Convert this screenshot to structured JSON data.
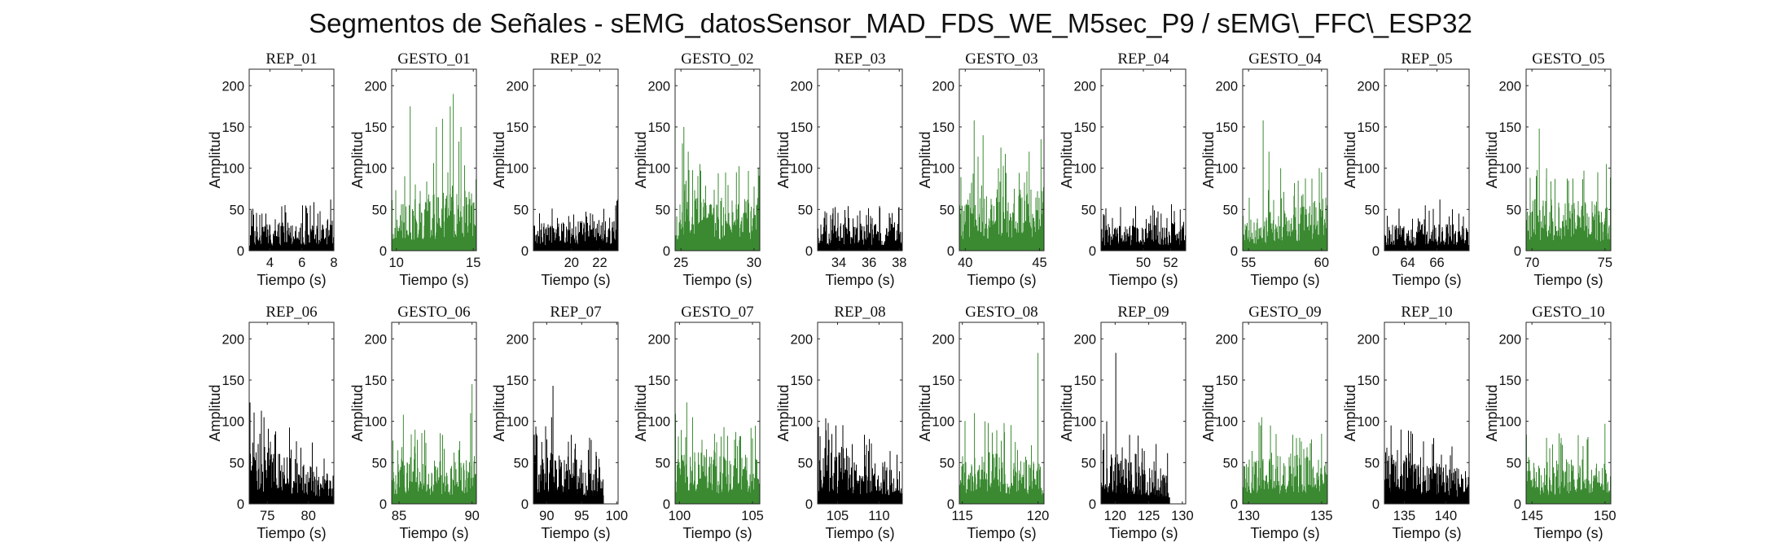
{
  "figure": {
    "title": "Segmentos de Señales - sEMG_datosSensor_MAD_FDS_WE_M5sec_P9 / sEMG\\_FFC\\_ESP32"
  },
  "colors": {
    "rep": "#000000",
    "gesto": "#3b8a32"
  },
  "chart_data": [
    {
      "type": "area",
      "title": "REP_01",
      "kind": "rep",
      "xlim": [
        2.7,
        8
      ],
      "ylim": [
        0,
        220
      ],
      "xticks": [
        4,
        6,
        8
      ],
      "yticks": [
        0,
        50,
        100,
        150,
        200
      ],
      "xlabel": "Tiempo (s)",
      "ylabel": "Amplitud",
      "data_start": 2.7,
      "data_end": 8,
      "base": [
        24,
        30
      ],
      "spikes": [
        [
          3.5,
          45
        ],
        [
          6.3,
          52
        ],
        [
          7.0,
          45
        ],
        [
          7.8,
          62
        ]
      ]
    },
    {
      "type": "area",
      "title": "GESTO_01",
      "kind": "gesto",
      "xlim": [
        9.7,
        15.2
      ],
      "ylim": [
        0,
        220
      ],
      "xticks": [
        10,
        15
      ],
      "yticks": [
        0,
        50,
        100,
        150,
        200
      ],
      "xlabel": "Tiempo (s)",
      "ylabel": "Amplitud",
      "data_start": 9.7,
      "data_end": 15.2,
      "base": [
        40,
        70
      ],
      "spikes": [
        [
          10.9,
          175
        ],
        [
          12.6,
          150
        ],
        [
          13.0,
          160
        ],
        [
          13.5,
          175
        ],
        [
          13.7,
          190
        ],
        [
          14.2,
          150
        ]
      ]
    },
    {
      "type": "area",
      "title": "REP_02",
      "kind": "rep",
      "xlim": [
        17.3,
        23.3
      ],
      "ylim": [
        0,
        220
      ],
      "xticks": [
        20,
        22
      ],
      "yticks": [
        0,
        50,
        100,
        150,
        200
      ],
      "xlabel": "Tiempo (s)",
      "ylabel": "Amplitud",
      "data_start": 17.3,
      "data_end": 23.3,
      "base": [
        25,
        30
      ],
      "spikes": [
        [
          19.8,
          42
        ],
        [
          21.5,
          44
        ],
        [
          22.7,
          40
        ]
      ]
    },
    {
      "type": "area",
      "title": "GESTO_02",
      "kind": "gesto",
      "xlim": [
        24.6,
        30.4
      ],
      "ylim": [
        0,
        220
      ],
      "xticks": [
        25,
        30
      ],
      "yticks": [
        0,
        50,
        100,
        150,
        200
      ],
      "xlabel": "Tiempo (s)",
      "ylabel": "Amplitud",
      "data_start": 24.6,
      "data_end": 30.4,
      "base": [
        50,
        50
      ],
      "spikes": [
        [
          25.1,
          130
        ],
        [
          25.2,
          150
        ],
        [
          25.5,
          120
        ],
        [
          26.3,
          105
        ],
        [
          28.8,
          95
        ],
        [
          30.3,
          100
        ]
      ]
    },
    {
      "type": "area",
      "title": "REP_03",
      "kind": "rep",
      "xlim": [
        32.6,
        38.2
      ],
      "ylim": [
        0,
        220
      ],
      "xticks": [
        34,
        36,
        38
      ],
      "yticks": [
        0,
        50,
        100,
        150,
        200
      ],
      "xlabel": "Tiempo (s)",
      "ylabel": "Amplitud",
      "data_start": 32.6,
      "data_end": 38.2,
      "base": [
        25,
        28
      ],
      "spikes": [
        [
          33.6,
          45
        ],
        [
          36.1,
          42
        ],
        [
          37.4,
          40
        ]
      ]
    },
    {
      "type": "area",
      "title": "GESTO_03",
      "kind": "gesto",
      "xlim": [
        39.6,
        45.3
      ],
      "ylim": [
        0,
        220
      ],
      "xticks": [
        40,
        45
      ],
      "yticks": [
        0,
        50,
        100,
        150,
        200
      ],
      "xlabel": "Tiempo (s)",
      "ylabel": "Amplitud",
      "data_start": 39.6,
      "data_end": 45.3,
      "base": [
        55,
        60
      ],
      "spikes": [
        [
          40.6,
          158
        ],
        [
          41.2,
          140
        ],
        [
          42.4,
          125
        ],
        [
          44.3,
          120
        ],
        [
          45.1,
          135
        ]
      ]
    },
    {
      "type": "area",
      "title": "REP_04",
      "kind": "rep",
      "xlim": [
        46.9,
        53.1
      ],
      "ylim": [
        0,
        220
      ],
      "xticks": [
        50,
        52
      ],
      "yticks": [
        0,
        50,
        100,
        150,
        200
      ],
      "xlabel": "Tiempo (s)",
      "ylabel": "Amplitud",
      "data_start": 46.9,
      "data_end": 53.1,
      "base": [
        25,
        28
      ],
      "spikes": [
        [
          50.7,
          55
        ],
        [
          51.3,
          45
        ],
        [
          52.7,
          50
        ]
      ]
    },
    {
      "type": "area",
      "title": "GESTO_04",
      "kind": "gesto",
      "xlim": [
        54.6,
        60.4
      ],
      "ylim": [
        0,
        220
      ],
      "xticks": [
        55,
        60
      ],
      "yticks": [
        0,
        50,
        100,
        150,
        200
      ],
      "xlabel": "Tiempo (s)",
      "ylabel": "Amplitud",
      "data_start": 54.6,
      "data_end": 60.4,
      "base": [
        30,
        50
      ],
      "spikes": [
        [
          56.0,
          158
        ],
        [
          56.4,
          120
        ],
        [
          57.2,
          100
        ],
        [
          58.4,
          85
        ],
        [
          60.0,
          95
        ]
      ]
    },
    {
      "type": "area",
      "title": "REP_05",
      "kind": "rep",
      "xlim": [
        62.4,
        68.2
      ],
      "ylim": [
        0,
        220
      ],
      "xticks": [
        64,
        66
      ],
      "yticks": [
        0,
        50,
        100,
        150,
        200
      ],
      "xlabel": "Tiempo (s)",
      "ylabel": "Amplitud",
      "data_start": 62.4,
      "data_end": 68.2,
      "base": [
        24,
        26
      ],
      "spikes": [
        [
          63.4,
          50
        ],
        [
          65.2,
          55
        ],
        [
          66.2,
          62
        ],
        [
          67.5,
          45
        ]
      ]
    },
    {
      "type": "area",
      "title": "GESTO_05",
      "kind": "gesto",
      "xlim": [
        69.6,
        75.4
      ],
      "ylim": [
        0,
        220
      ],
      "xticks": [
        70,
        75
      ],
      "yticks": [
        0,
        50,
        100,
        150,
        200
      ],
      "xlabel": "Tiempo (s)",
      "ylabel": "Amplitud",
      "data_start": 69.6,
      "data_end": 75.4,
      "base": [
        50,
        45
      ],
      "spikes": [
        [
          70.5,
          148
        ],
        [
          71.0,
          100
        ],
        [
          72.5,
          85
        ],
        [
          75.1,
          105
        ]
      ]
    },
    {
      "type": "area",
      "title": "REP_06",
      "kind": "rep",
      "xlim": [
        72.8,
        83.1
      ],
      "ylim": [
        0,
        220
      ],
      "xticks": [
        75,
        80
      ],
      "yticks": [
        0,
        50,
        100,
        150,
        200
      ],
      "xlabel": "Tiempo (s)",
      "ylabel": "Amplitud",
      "data_start": 72.8,
      "data_end": 83.1,
      "base": [
        60,
        30
      ],
      "spikes": [
        [
          74.6,
          105
        ],
        [
          74.1,
          85
        ],
        [
          75.5,
          60
        ],
        [
          81.0,
          45
        ]
      ]
    },
    {
      "type": "area",
      "title": "GESTO_06",
      "kind": "gesto",
      "xlim": [
        84.5,
        90.3
      ],
      "ylim": [
        0,
        220
      ],
      "xticks": [
        85,
        90
      ],
      "yticks": [
        0,
        50,
        100,
        150,
        200
      ],
      "xlabel": "Tiempo (s)",
      "ylabel": "Amplitud",
      "data_start": 84.5,
      "data_end": 90.3,
      "base": [
        45,
        40
      ],
      "spikes": [
        [
          85.3,
          108
        ],
        [
          86.1,
          90
        ],
        [
          90.0,
          145
        ],
        [
          89.9,
          110
        ]
      ]
    },
    {
      "type": "area",
      "title": "REP_07",
      "kind": "rep",
      "xlim": [
        88.1,
        100.2
      ],
      "ylim": [
        0,
        220
      ],
      "xticks": [
        90,
        95,
        100
      ],
      "yticks": [
        0,
        50,
        100,
        150,
        200
      ],
      "xlabel": "Tiempo (s)",
      "ylabel": "Amplitud",
      "data_start": 88.1,
      "data_end": 98.1,
      "base": [
        55,
        35
      ],
      "spikes": [
        [
          90.9,
          143
        ],
        [
          90.7,
          105
        ],
        [
          89.3,
          75
        ],
        [
          94.0,
          55
        ]
      ]
    },
    {
      "type": "area",
      "title": "GESTO_07",
      "kind": "gesto",
      "xlim": [
        99.7,
        105.5
      ],
      "ylim": [
        0,
        220
      ],
      "xticks": [
        100,
        105
      ],
      "yticks": [
        0,
        50,
        100,
        150,
        200
      ],
      "xlabel": "Tiempo (s)",
      "ylabel": "Amplitud",
      "data_start": 99.7,
      "data_end": 105.5,
      "base": [
        55,
        45
      ],
      "spikes": [
        [
          100.5,
          123
        ],
        [
          100.9,
          105
        ],
        [
          102.4,
          85
        ],
        [
          104.9,
          92
        ]
      ]
    },
    {
      "type": "area",
      "title": "REP_08",
      "kind": "rep",
      "xlim": [
        102.6,
        112.8
      ],
      "ylim": [
        0,
        220
      ],
      "xticks": [
        105,
        110
      ],
      "yticks": [
        0,
        50,
        100,
        150,
        200
      ],
      "xlabel": "Tiempo (s)",
      "ylabel": "Amplitud",
      "data_start": 102.6,
      "data_end": 112.8,
      "base": [
        55,
        30
      ],
      "spikes": [
        [
          102.9,
          82
        ],
        [
          104.8,
          95
        ],
        [
          107.0,
          50
        ],
        [
          110.5,
          45
        ]
      ]
    },
    {
      "type": "area",
      "title": "GESTO_08",
      "kind": "gesto",
      "xlim": [
        114.8,
        120.4
      ],
      "ylim": [
        0,
        220
      ],
      "xticks": [
        115,
        120
      ],
      "yticks": [
        0,
        50,
        100,
        150,
        200
      ],
      "xlabel": "Tiempo (s)",
      "ylabel": "Amplitud",
      "data_start": 114.8,
      "data_end": 120.4,
      "base": [
        50,
        45
      ],
      "spikes": [
        [
          115.8,
          110
        ],
        [
          116.5,
          100
        ],
        [
          118.5,
          75
        ],
        [
          120.0,
          183
        ]
      ]
    },
    {
      "type": "area",
      "title": "REP_09",
      "kind": "rep",
      "xlim": [
        117.9,
        130.5
      ],
      "ylim": [
        0,
        220
      ],
      "xticks": [
        120,
        125,
        130
      ],
      "yticks": [
        0,
        50,
        100,
        150,
        200
      ],
      "xlabel": "Tiempo (s)",
      "ylabel": "Amplitud",
      "data_start": 117.9,
      "data_end": 128.1,
      "base": [
        55,
        30
      ],
      "spikes": [
        [
          120.1,
          183
        ],
        [
          118.3,
          85
        ],
        [
          121.5,
          55
        ],
        [
          126.0,
          40
        ]
      ]
    },
    {
      "type": "area",
      "title": "GESTO_09",
      "kind": "gesto",
      "xlim": [
        129.6,
        135.4
      ],
      "ylim": [
        0,
        220
      ],
      "xticks": [
        130,
        135
      ],
      "yticks": [
        0,
        50,
        100,
        150,
        200
      ],
      "xlabel": "Tiempo (s)",
      "ylabel": "Amplitud",
      "data_start": 129.6,
      "data_end": 135.4,
      "base": [
        50,
        45
      ],
      "spikes": [
        [
          130.9,
          105
        ],
        [
          131.5,
          95
        ],
        [
          133.5,
          80
        ],
        [
          135.0,
          85
        ]
      ]
    },
    {
      "type": "area",
      "title": "REP_10",
      "kind": "rep",
      "xlim": [
        132.6,
        142.8
      ],
      "ylim": [
        0,
        220
      ],
      "xticks": [
        135,
        140
      ],
      "yticks": [
        0,
        50,
        100,
        150,
        200
      ],
      "xlabel": "Tiempo (s)",
      "ylabel": "Amplitud",
      "data_start": 132.6,
      "data_end": 142.8,
      "base": [
        55,
        30
      ],
      "spikes": [
        [
          133.4,
          95
        ],
        [
          134.6,
          90
        ],
        [
          135.8,
          88
        ],
        [
          139.0,
          45
        ]
      ]
    },
    {
      "type": "area",
      "title": "GESTO_10",
      "kind": "gesto",
      "xlim": [
        144.6,
        150.4
      ],
      "ylim": [
        0,
        220
      ],
      "xticks": [
        145,
        150
      ],
      "yticks": [
        0,
        50,
        100,
        150,
        200
      ],
      "xlabel": "Tiempo (s)",
      "ylabel": "Amplitud",
      "data_start": 144.6,
      "data_end": 150.4,
      "base": [
        45,
        40
      ],
      "spikes": [
        [
          146.0,
          80
        ],
        [
          147.0,
          80
        ],
        [
          148.5,
          70
        ],
        [
          150.0,
          97
        ]
      ]
    }
  ]
}
